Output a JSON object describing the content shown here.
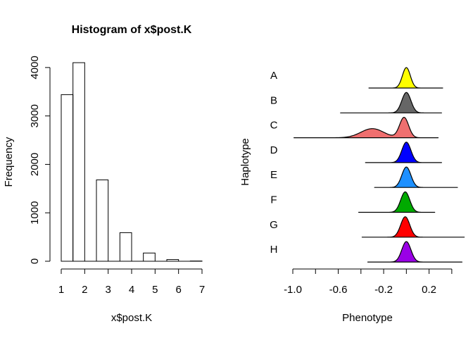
{
  "chart_data": [
    {
      "type": "bar",
      "title": "Histogram of x$post.K",
      "xlabel": "x$post.K",
      "ylabel": "Frequency",
      "bins": [
        {
          "from": 1.0,
          "to": 1.5,
          "count": 3440
        },
        {
          "from": 1.5,
          "to": 2.0,
          "count": 4100
        },
        {
          "from": 2.0,
          "to": 2.5,
          "count": 0
        },
        {
          "from": 2.5,
          "to": 3.0,
          "count": 1680
        },
        {
          "from": 3.0,
          "to": 3.5,
          "count": 0
        },
        {
          "from": 3.5,
          "to": 4.0,
          "count": 590
        },
        {
          "from": 4.0,
          "to": 4.5,
          "count": 0
        },
        {
          "from": 4.5,
          "to": 5.0,
          "count": 170
        },
        {
          "from": 5.0,
          "to": 5.5,
          "count": 0
        },
        {
          "from": 5.5,
          "to": 6.0,
          "count": 35
        },
        {
          "from": 6.0,
          "to": 6.5,
          "count": 0
        },
        {
          "from": 6.5,
          "to": 7.0,
          "count": 5
        }
      ],
      "xlim": [
        1,
        7
      ],
      "ylim": [
        0,
        4100
      ],
      "xticks": [
        "1",
        "2",
        "3",
        "4",
        "5",
        "6",
        "7"
      ],
      "yticks": [
        "0",
        "1000",
        "2000",
        "3000",
        "4000"
      ],
      "grid": false
    },
    {
      "type": "area",
      "title": "",
      "xlabel": "Phenotype",
      "ylabel": "Haplotype",
      "xlim": [
        -1.0,
        0.5
      ],
      "xticks": [
        "-1.0",
        "-0.6",
        "-0.2",
        "0.2"
      ],
      "grid": false,
      "series": [
        {
          "name": "A",
          "color": "#ffff00",
          "min": -0.33,
          "max": 0.32,
          "peaks": [
            {
              "mean": 0.0,
              "sd": 0.035,
              "weight": 1.0
            }
          ]
        },
        {
          "name": "B",
          "color": "#666666",
          "min": -0.58,
          "max": 0.31,
          "peaks": [
            {
              "mean": 0.0,
              "sd": 0.04,
              "weight": 1.0
            }
          ]
        },
        {
          "name": "C",
          "color": "#ef6f6f",
          "min": -0.99,
          "max": 0.28,
          "peaks": [
            {
              "mean": -0.02,
              "sd": 0.04,
              "weight": 1.0
            },
            {
              "mean": -0.3,
              "sd": 0.1,
              "weight": 0.45
            }
          ]
        },
        {
          "name": "D",
          "color": "#0000ff",
          "min": -0.36,
          "max": 0.31,
          "peaks": [
            {
              "mean": 0.0,
              "sd": 0.04,
              "weight": 1.0
            }
          ]
        },
        {
          "name": "E",
          "color": "#1e90ff",
          "min": -0.28,
          "max": 0.45,
          "peaks": [
            {
              "mean": 0.0,
              "sd": 0.04,
              "weight": 1.0
            }
          ]
        },
        {
          "name": "F",
          "color": "#00aa00",
          "min": -0.42,
          "max": 0.25,
          "peaks": [
            {
              "mean": -0.01,
              "sd": 0.04,
              "weight": 1.0
            }
          ]
        },
        {
          "name": "G",
          "color": "#ff0000",
          "min": -0.39,
          "max": 0.51,
          "peaks": [
            {
              "mean": -0.01,
              "sd": 0.04,
              "weight": 1.0
            }
          ]
        },
        {
          "name": "H",
          "color": "#9a00e6",
          "min": -0.34,
          "max": 0.49,
          "peaks": [
            {
              "mean": 0.0,
              "sd": 0.04,
              "weight": 1.0
            }
          ]
        }
      ]
    }
  ]
}
